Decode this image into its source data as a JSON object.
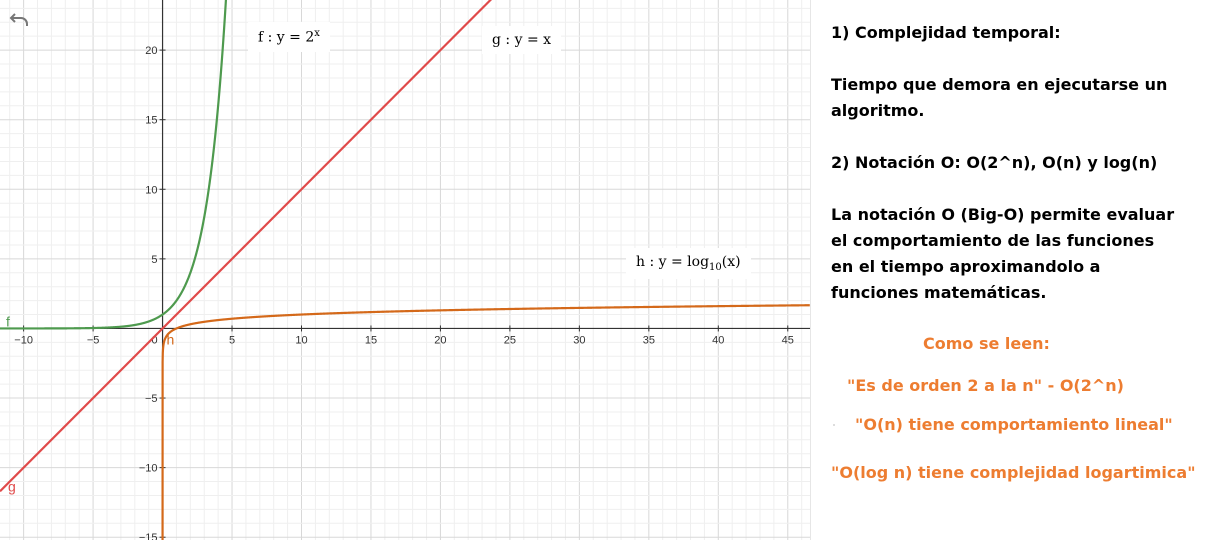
{
  "graph": {
    "undo_icon": "undo-icon",
    "labels": {
      "f_prefix": "f : y = 2",
      "f_sup": "x",
      "g": "g : y = x",
      "h_prefix": "h : y = log",
      "h_sub": "10",
      "h_suffix": "(x)"
    },
    "function_names": {
      "f": "f",
      "g": "g",
      "h": "h"
    },
    "colors": {
      "f": "#4e9a4e",
      "g": "#e04a4a",
      "h": "#d4691a",
      "text_orange": "#ed7d31"
    }
  },
  "chart_data": {
    "type": "line",
    "xlim": [
      -11.7,
      46.6
    ],
    "ylim": [
      -15.2,
      23.6
    ],
    "x_ticks": [
      -10,
      -5,
      0,
      5,
      10,
      15,
      20,
      25,
      30,
      35,
      40,
      45
    ],
    "y_ticks": [
      -15,
      -10,
      -5,
      5,
      10,
      15,
      20
    ],
    "grid": true,
    "series": [
      {
        "name": "f",
        "equation": "y = 2^x",
        "color": "#4e9a4e"
      },
      {
        "name": "g",
        "equation": "y = x",
        "color": "#e04a4a"
      },
      {
        "name": "h",
        "equation": "y = log10(x)",
        "color": "#d4691a"
      }
    ]
  },
  "notes": {
    "heading1": "1) Complejidad temporal:",
    "def_line1": "Tiempo que demora en ejecutarse un",
    "def_line2": "algoritmo.",
    "heading2": "2) Notación O: O(2^n), O(n) y log(n)",
    "para_line1": "La notación O (Big-O) permite evaluar",
    "para_line2": "el comportamiento de las funciones",
    "para_line3": "en el tiempo aproximandolo a",
    "para_line4": "funciones matemáticas.",
    "read_heading": "Como se leen:",
    "read1": "\"Es de orden 2 a la n\" -  O(2^n)",
    "read2": "\"O(n) tiene comportamiento lineal\"",
    "read3": "\"O(log n) tiene complejidad logartimica\""
  }
}
